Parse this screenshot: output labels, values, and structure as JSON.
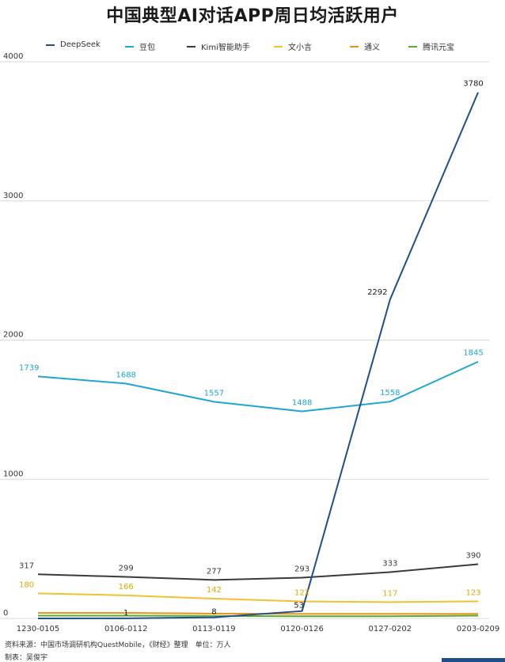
{
  "chart_data": {
    "type": "line",
    "title": "中国典型AI对话APP周日均活跃用户",
    "categories": [
      "1230-0105",
      "0106-0112",
      "0113-0119",
      "0120-0126",
      "0127-0202",
      "0203-0209"
    ],
    "ylim": [
      0,
      4000
    ],
    "yticks": [
      0,
      1000,
      2000,
      3000,
      4000
    ],
    "grid": "horizontal",
    "legend_position": "top",
    "series": [
      {
        "name": "DeepSeek",
        "color": "#1f4e8c",
        "values": [
          0,
          1,
          8,
          53,
          2292,
          3780
        ],
        "labels": [
          "",
          "1",
          "8",
          "53",
          "2292",
          "3780"
        ]
      },
      {
        "name": "豆包",
        "color": "#1ea5d6",
        "values": [
          1739,
          1688,
          1557,
          1488,
          1558,
          1845
        ],
        "labels": [
          "1739",
          "1688",
          "1557",
          "1488",
          "1558",
          "1845"
        ]
      },
      {
        "name": "Kimi智能助手",
        "color": "#3a3a3a",
        "values": [
          317,
          299,
          277,
          293,
          333,
          390
        ],
        "labels": [
          "317",
          "299",
          "277",
          "293",
          "333",
          "390"
        ]
      },
      {
        "name": "文小言",
        "color": "#f2c12e",
        "values": [
          180,
          166,
          142,
          122,
          117,
          123
        ],
        "labels": [
          "180",
          "166",
          "142",
          "122",
          "117",
          "123"
        ]
      },
      {
        "name": "通义",
        "color": "#e8941a",
        "values": [
          40,
          40,
          35,
          33,
          33,
          33
        ],
        "labels": [
          "",
          "",
          "",
          "",
          "",
          ""
        ]
      },
      {
        "name": "腾讯元宝",
        "color": "#5aa832",
        "values": [
          20,
          20,
          18,
          16,
          16,
          20
        ],
        "labels": [
          "",
          "",
          "",
          "",
          "",
          ""
        ]
      }
    ]
  },
  "footer": {
    "source": "资料来源：中国市场调研机构QuestMobile，《财经》整理　单位：万人",
    "credit": "制表：吴俊宇"
  }
}
